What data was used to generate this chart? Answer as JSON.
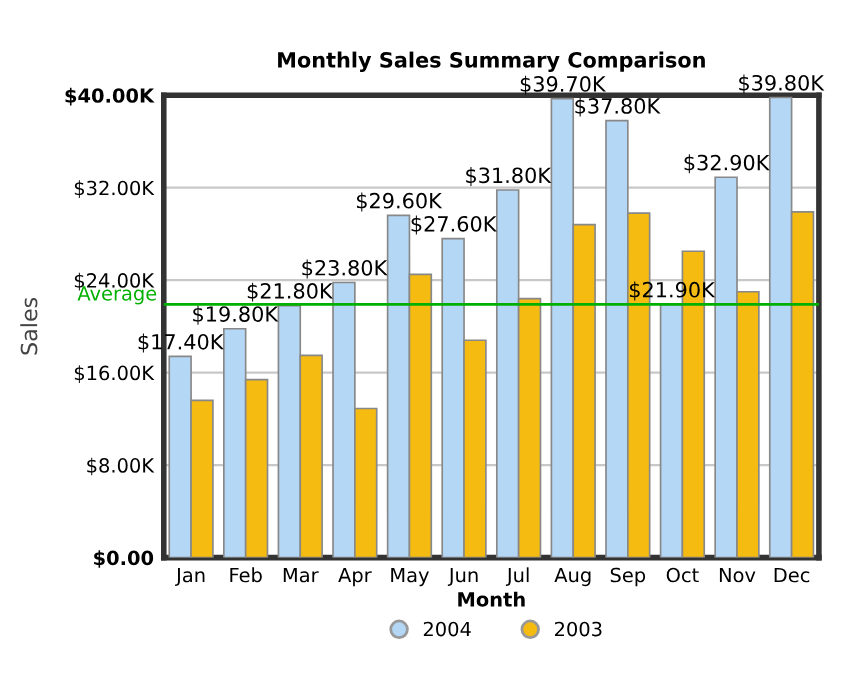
{
  "chart_data": {
    "type": "bar",
    "title": "Monthly Sales Summary Comparison",
    "xlabel": "Month",
    "ylabel": "Sales",
    "categories": [
      "Jan",
      "Feb",
      "Mar",
      "Apr",
      "May",
      "Jun",
      "Jul",
      "Aug",
      "Sep",
      "Oct",
      "Nov",
      "Dec"
    ],
    "series": [
      {
        "name": "2004",
        "color": "#b3d7f5",
        "values": [
          17.4,
          19.8,
          21.8,
          23.8,
          29.6,
          27.6,
          31.8,
          39.7,
          37.8,
          21.9,
          32.9,
          39.8
        ],
        "value_labels": [
          "$17.40K",
          "$19.80K",
          "$21.80K",
          "$23.80K",
          "$29.60K",
          "$27.60K",
          "$31.80K",
          "$39.70K",
          "$37.80K",
          "$21.90K",
          "$32.90K",
          "$39.80K"
        ]
      },
      {
        "name": "2003",
        "color": "#f5bb10",
        "values": [
          13.6,
          15.4,
          17.5,
          12.9,
          24.5,
          18.8,
          22.4,
          28.8,
          29.8,
          26.5,
          23.0,
          29.9
        ]
      }
    ],
    "ylim": [
      0,
      40
    ],
    "yticks": [
      {
        "value": 0,
        "label": "$0.00"
      },
      {
        "value": 8,
        "label": "$8.00K"
      },
      {
        "value": 16,
        "label": "$16.00K"
      },
      {
        "value": 24,
        "label": "$24.00K"
      },
      {
        "value": 32,
        "label": "$32.00K"
      },
      {
        "value": 40,
        "label": "$40.00K"
      }
    ],
    "ref_lines": [
      {
        "axis": "y",
        "value": 21.9,
        "label": "Average",
        "color": "#00b000"
      }
    ],
    "grid": "y",
    "legend": "bottom",
    "marker": "circle"
  }
}
